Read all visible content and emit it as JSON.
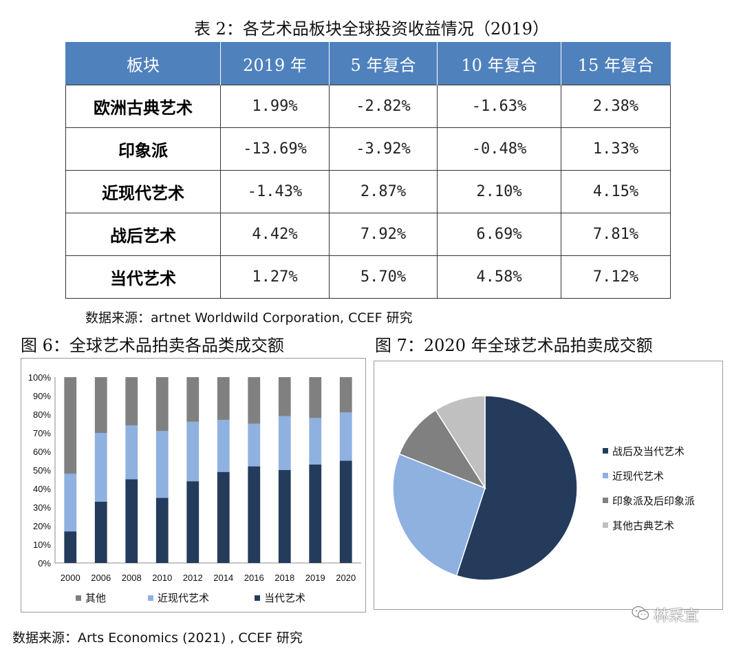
{
  "table": {
    "title": "表 2：各艺术品板块全球投资收益情况（2019）",
    "headers": [
      "板块",
      "2019 年",
      "5 年复合",
      "10 年复合",
      "15 年复合"
    ],
    "rows": [
      [
        "欧洲古典艺术",
        "1.99%",
        "-2.82%",
        "-1.63%",
        "2.38%"
      ],
      [
        "印象派",
        "-13.69%",
        "-3.92%",
        "-0.48%",
        "1.33%"
      ],
      [
        "近现代艺术",
        "-1.43%",
        "2.87%",
        "2.10%",
        "4.15%"
      ],
      [
        "战后艺术",
        "4.42%",
        "7.92%",
        "6.69%",
        "7.81%"
      ],
      [
        "当代艺术",
        "1.27%",
        "5.70%",
        "4.58%",
        "7.12%"
      ]
    ],
    "source": "数据来源：artnet Worldwild Corporation, CCEF 研究"
  },
  "fig6": {
    "title": "图 6：全球艺术品拍卖各品类成交额"
  },
  "fig7": {
    "title": "图 7：2020 年全球艺术品拍卖成交额"
  },
  "bottom_source": "数据来源：Arts Economics (2021) , CCEF 研究",
  "watermark": "林采宜",
  "chart_data": [
    {
      "type": "bar",
      "stacked": true,
      "categories": [
        "2000",
        "2006",
        "2008",
        "2010",
        "2012",
        "2014",
        "2016",
        "2018",
        "2019",
        "2020"
      ],
      "series": [
        {
          "name": "当代艺术",
          "color": "#243b5c",
          "values": [
            17,
            33,
            45,
            35,
            44,
            49,
            52,
            50,
            53,
            55
          ]
        },
        {
          "name": "近现代艺术",
          "color": "#8eb1e0",
          "values": [
            31,
            37,
            29,
            36,
            32,
            28,
            23,
            29,
            25,
            26
          ]
        },
        {
          "name": "其他",
          "color": "#808080",
          "values": [
            52,
            30,
            26,
            29,
            24,
            23,
            25,
            21,
            22,
            19
          ]
        }
      ],
      "legend_order": [
        "其他",
        "近现代艺术",
        "当代艺术"
      ],
      "yticks": [
        "0%",
        "10%",
        "20%",
        "30%",
        "40%",
        "50%",
        "60%",
        "70%",
        "80%",
        "90%",
        "100%"
      ],
      "ylim": [
        0,
        100
      ],
      "legend": "bottom"
    },
    {
      "type": "pie",
      "slices": [
        {
          "name": "战后及当代艺术",
          "value": 55,
          "color": "#243b5c"
        },
        {
          "name": "近现代艺术",
          "value": 26,
          "color": "#8eb1e0"
        },
        {
          "name": "印象派及后印象派",
          "value": 10,
          "color": "#808080"
        },
        {
          "name": "其他古典艺术",
          "value": 9,
          "color": "#c0c0c0"
        }
      ],
      "start": "12 o'clock, clockwise",
      "legend": "right"
    }
  ]
}
